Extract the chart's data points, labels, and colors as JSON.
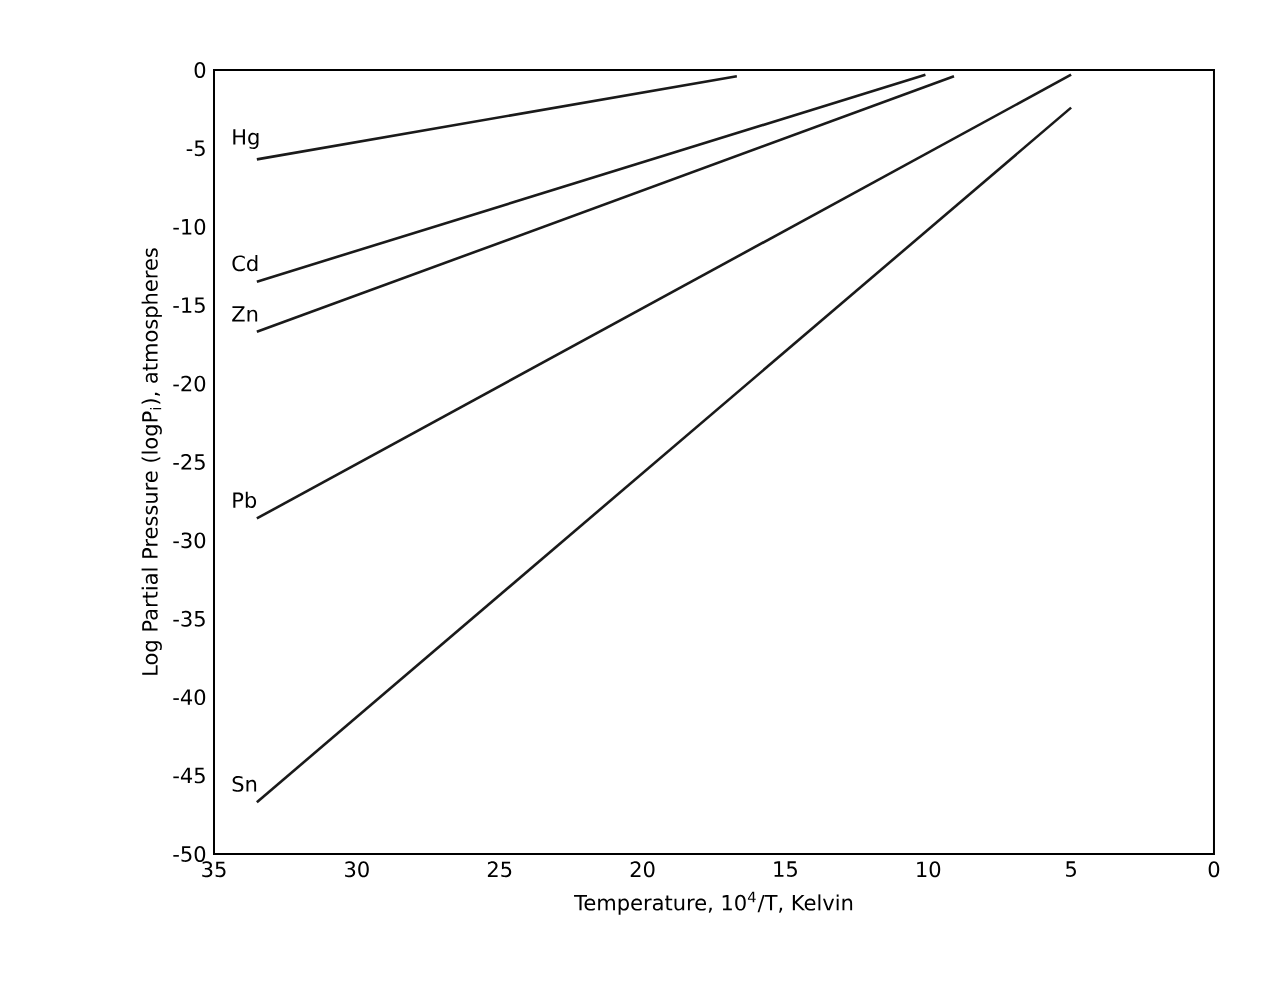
{
  "chart_data": {
    "type": "line",
    "xlabel": "Temperature, 10$^{4}$/T, Kelvin",
    "ylabel": "Log Partial Pressure (logP$_{i}$), atmospheres",
    "xlim": [
      35,
      0
    ],
    "xticks": [
      35,
      30,
      25,
      20,
      15,
      10,
      5,
      0
    ],
    "ylim": [
      -50,
      0
    ],
    "yticks": [
      0,
      -5,
      -10,
      -15,
      -20,
      -25,
      -30,
      -35,
      -40,
      -45,
      -50
    ],
    "legend": false,
    "marker": "none",
    "line_style": "solid",
    "series": [
      {
        "name": "Hg",
        "color": "#1a1a1a",
        "x": [
          33.5,
          16.7
        ],
        "values": [
          -5.7,
          -0.4
        ]
      },
      {
        "name": "Cd",
        "color": "#1a1a1a",
        "x": [
          33.5,
          10.1
        ],
        "values": [
          -13.5,
          -0.3
        ]
      },
      {
        "name": "Zn",
        "color": "#1a1a1a",
        "x": [
          33.5,
          9.1
        ],
        "values": [
          -16.7,
          -0.4
        ]
      },
      {
        "name": "Pb",
        "color": "#1a1a1a",
        "x": [
          33.5,
          5.0
        ],
        "values": [
          -28.6,
          -0.3
        ]
      },
      {
        "name": "Sn",
        "color": "#1a1a1a",
        "x": [
          33.5,
          5.0
        ],
        "values": [
          -46.7,
          -2.4
        ]
      }
    ]
  }
}
